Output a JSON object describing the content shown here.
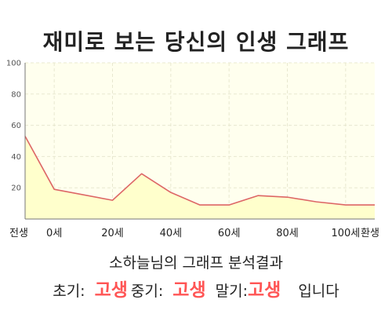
{
  "title": "재미로 보는 당신의 인생 그래프",
  "summary": "소하늘님의 그래프 분석결과",
  "result": {
    "early_label": "초기:",
    "early_value": "고생",
    "mid_label": "중기:",
    "mid_value": "고생",
    "late_label": "말기:",
    "late_value": "고생",
    "suffix": "입니다"
  },
  "colors": {
    "line": "#dd6666",
    "fill": "#ffffcc",
    "plot_bg": "#ffffee",
    "stage_value": "#ff5555"
  },
  "chart_data": {
    "type": "area",
    "x": [
      -10,
      0,
      20,
      30,
      40,
      50,
      60,
      70,
      80,
      90,
      100,
      110
    ],
    "values": [
      53,
      19,
      12,
      29,
      17,
      9,
      9,
      15,
      14,
      11,
      9,
      9
    ],
    "x_ticks": [
      {
        "x": -10,
        "label": "전생"
      },
      {
        "x": 0,
        "label": "0세"
      },
      {
        "x": 20,
        "label": "20세"
      },
      {
        "x": 40,
        "label": "40세"
      },
      {
        "x": 60,
        "label": "60세"
      },
      {
        "x": 80,
        "label": "80세"
      },
      {
        "x": 100,
        "label": "100세"
      },
      {
        "x": 110,
        "label": "환생"
      }
    ],
    "y_ticks": [
      20,
      40,
      60,
      80,
      100
    ],
    "ylim": [
      0,
      100
    ],
    "xlim": [
      -10,
      110
    ],
    "grid": true
  }
}
